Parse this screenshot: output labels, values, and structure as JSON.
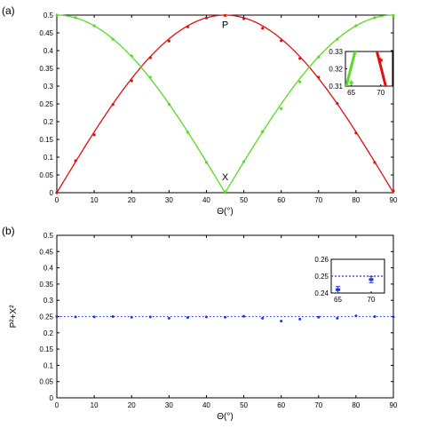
{
  "chart_data": [
    {
      "panel_label": "(a)",
      "type": "line",
      "xlabel": "Θ(°)",
      "ylabel": "",
      "xlim": [
        0,
        90
      ],
      "ylim": [
        0,
        0.5
      ],
      "xticks": [
        0,
        10,
        20,
        30,
        40,
        50,
        60,
        70,
        80,
        90
      ],
      "yticks": [
        0,
        0.05,
        0.1,
        0.15,
        0.2,
        0.25,
        0.3,
        0.35,
        0.4,
        0.45,
        0.5
      ],
      "series": [
        {
          "name": "P",
          "color": "#dd1111",
          "curve": "0.5*sin(2θ)",
          "x": [
            0,
            5,
            10,
            15,
            20,
            25,
            30,
            35,
            40,
            45,
            50,
            55,
            60,
            65,
            70,
            75,
            80,
            85,
            90
          ],
          "y": [
            0,
            0.09,
            0.163,
            0.248,
            0.315,
            0.38,
            0.427,
            0.467,
            0.492,
            0.499,
            0.49,
            0.463,
            0.428,
            0.378,
            0.325,
            0.251,
            0.168,
            0.085,
            0.005
          ]
        },
        {
          "name": "X",
          "color": "#55dd22",
          "curve": "0.5*|cos(2θ)|",
          "x": [
            0,
            5,
            10,
            15,
            20,
            25,
            30,
            35,
            40,
            45,
            50,
            55,
            60,
            65,
            70,
            75,
            80,
            85,
            90
          ],
          "y": [
            0.5,
            0.493,
            0.47,
            0.432,
            0.385,
            0.325,
            0.249,
            0.17,
            0.085,
            0.003,
            0.087,
            0.172,
            0.237,
            0.312,
            0.382,
            0.432,
            0.47,
            0.493,
            0.499
          ]
        }
      ],
      "inset": {
        "xlim": [
          64,
          72
        ],
        "ylim": [
          0.31,
          0.33
        ],
        "xticks": [
          65,
          70
        ],
        "yticks": [
          0.31,
          0.32,
          0.33
        ]
      }
    },
    {
      "panel_label": "(b)",
      "type": "scatter",
      "xlabel": "Θ(°)",
      "ylabel": "P²+X²",
      "xlim": [
        0,
        90
      ],
      "ylim": [
        0,
        0.5
      ],
      "xticks": [
        0,
        10,
        20,
        30,
        40,
        50,
        60,
        70,
        80,
        90
      ],
      "yticks": [
        0,
        0.05,
        0.1,
        0.15,
        0.2,
        0.25,
        0.3,
        0.35,
        0.4,
        0.45,
        0.5
      ],
      "reference_line": 0.25,
      "series": [
        {
          "name": "P²+X²",
          "color": "#2233dd",
          "x": [
            0,
            5,
            10,
            15,
            20,
            25,
            30,
            35,
            40,
            45,
            50,
            55,
            60,
            65,
            70,
            75,
            80,
            85,
            90
          ],
          "y": [
            0.25,
            0.249,
            0.249,
            0.25,
            0.248,
            0.249,
            0.245,
            0.247,
            0.249,
            0.248,
            0.251,
            0.245,
            0.236,
            0.242,
            0.248,
            0.245,
            0.252,
            0.25,
            0.249
          ]
        }
      ],
      "inset": {
        "xlim": [
          64,
          72
        ],
        "ylim": [
          0.24,
          0.26
        ],
        "xticks": [
          65,
          70
        ],
        "yticks": [
          0.24,
          0.25,
          0.26
        ]
      }
    }
  ]
}
